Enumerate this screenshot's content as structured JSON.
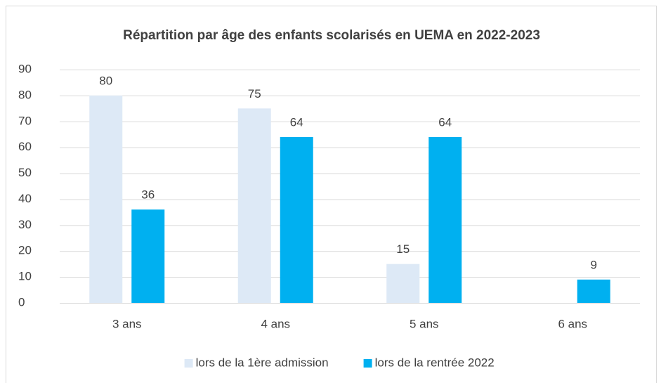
{
  "chart_data": {
    "type": "bar",
    "title": "Répartition par âge des enfants scolarisés en UEMA en 2022-2023",
    "categories": [
      "3 ans",
      "4 ans",
      "5 ans",
      "6 ans"
    ],
    "series": [
      {
        "name": "lors de la 1ère admission",
        "color": "#dde9f6",
        "values": [
          80,
          75,
          15,
          null
        ]
      },
      {
        "name": "lors de la rentrée 2022",
        "color": "#00b0f0",
        "values": [
          36,
          64,
          64,
          9
        ]
      }
    ],
    "ylim": [
      0,
      90
    ],
    "yticks": [
      0,
      10,
      20,
      30,
      40,
      50,
      60,
      70,
      80,
      90
    ],
    "grid": true,
    "legend": "bottom"
  }
}
